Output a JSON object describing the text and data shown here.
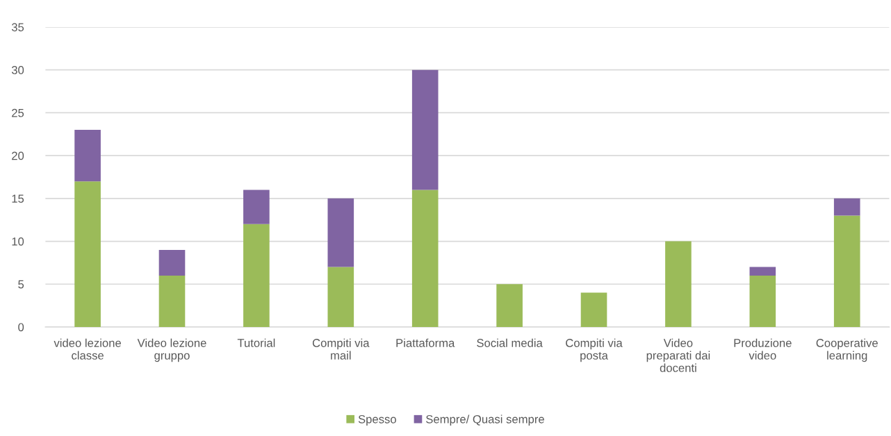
{
  "chart_data": {
    "type": "bar",
    "stacked": true,
    "categories": [
      "video lezione\nclasse",
      "Video lezione\ngruppo",
      "Tutorial",
      "Compiti via\nmail",
      "Piattaforma",
      "Social media",
      "Compiti via\nposta",
      "Video\npreparati dai\ndocenti",
      "Produzione\nvideo",
      "Cooperative\nlearning"
    ],
    "series": [
      {
        "name": "Spesso",
        "color": "#9bbb59",
        "values": [
          17,
          6,
          12,
          7,
          16,
          5,
          4,
          10,
          6,
          13
        ]
      },
      {
        "name": "Sempre/ Quasi sempre",
        "color": "#8064a2",
        "values": [
          6,
          3,
          4,
          8,
          14,
          null,
          null,
          null,
          1,
          2
        ]
      }
    ],
    "ylim": [
      0,
      35
    ],
    "yticks": [
      0,
      5,
      10,
      15,
      20,
      25,
      30,
      35
    ],
    "grid": "y",
    "legend": "bottom"
  }
}
